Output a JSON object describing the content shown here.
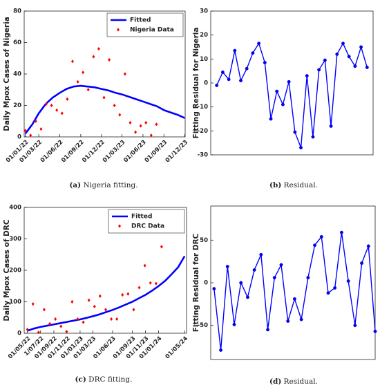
{
  "chart_data": [
    {
      "type": "line",
      "ylabel": "Daily Mpox Cases of Nigeria",
      "caption_label": "(a)",
      "caption": "Nigeria fitting.",
      "xlim": [
        "27/12/21",
        "03/12/23"
      ],
      "ylim": [
        0,
        80
      ],
      "xticks": [
        "01/01/22",
        "01/03/22",
        "01/06/22",
        "01/09/22",
        "01/12/22",
        "01/03/23",
        "01/06/23",
        "01/09/23",
        "01/12/23"
      ],
      "yticks": [
        0,
        20,
        40,
        60,
        80
      ],
      "legend": "upper right",
      "series": [
        {
          "name": "Fitted",
          "color": "#0000ff",
          "line": true,
          "marker": null,
          "x": [
            "01/01/22",
            "01/02/22",
            "01/03/22",
            "01/04/22",
            "01/05/22",
            "01/06/22",
            "01/07/22",
            "01/08/22",
            "01/09/22",
            "01/10/22",
            "01/11/22",
            "01/12/22",
            "01/01/23",
            "01/02/23",
            "01/03/23",
            "01/04/23",
            "01/05/23",
            "01/06/23",
            "01/07/23",
            "01/08/23",
            "01/09/23",
            "01/10/23",
            "01/11/23",
            "01/12/23"
          ],
          "values": [
            2,
            8,
            15,
            21,
            25,
            28,
            30.5,
            32,
            32.5,
            32,
            31.5,
            30.5,
            29.5,
            28,
            27,
            25.5,
            24,
            22.5,
            21,
            19.5,
            17,
            15.5,
            14,
            12
          ]
        },
        {
          "name": "Nigeria Data",
          "color": "#ff0000",
          "line": false,
          "marker": "diamond",
          "x": [
            "01/01/22",
            "24/01/22",
            "16/02/22",
            "11/03/22",
            "03/04/22",
            "26/04/22",
            "19/05/22",
            "11/06/22",
            "04/07/22",
            "27/07/22",
            "19/08/22",
            "11/09/22",
            "04/10/22",
            "27/10/22",
            "19/11/22",
            "12/12/22",
            "04/01/23",
            "27/01/23",
            "19/02/23",
            "14/03/23",
            "06/04/23",
            "29/04/23",
            "22/05/23",
            "14/06/23",
            "07/07/23",
            "30/07/23"
          ],
          "values": [
            4,
            1,
            10,
            5,
            21,
            20,
            17,
            15,
            24,
            48,
            35,
            41,
            30,
            51,
            56,
            25,
            49,
            20,
            14,
            40,
            9,
            3,
            7,
            9,
            1,
            8
          ]
        }
      ]
    },
    {
      "type": "line",
      "ylabel": "Fitting Residual for Nigeria",
      "caption_label": "(b)",
      "caption": "Residual.",
      "xlim": [
        0,
        27
      ],
      "ylim": [
        -30,
        30
      ],
      "yticks": [
        -30,
        -20,
        -10,
        0,
        10,
        20,
        30
      ],
      "series": [
        {
          "color": "#0000ff",
          "line": true,
          "marker": "circle",
          "x": [
            1,
            2,
            3,
            4,
            5,
            6,
            7,
            8,
            9,
            10,
            11,
            12,
            13,
            14,
            15,
            16,
            17,
            18,
            19,
            20,
            21,
            22,
            23,
            24,
            25,
            26
          ],
          "values": [
            -1,
            4.5,
            1.5,
            13.5,
            1,
            6,
            12.5,
            16.5,
            8.5,
            -15,
            -3.5,
            -9,
            0.5,
            -20.5,
            -27,
            3,
            -22.5,
            5.5,
            9.5,
            -18,
            12,
            16.5,
            11,
            7,
            15,
            6.5
          ]
        }
      ]
    },
    {
      "type": "line",
      "ylabel": "Daily Mpox Cases of DRC",
      "caption_label": "(c)",
      "caption": "DRC fitting.",
      "xlim": [
        "16/04/22",
        "10/05/24"
      ],
      "ylim": [
        0,
        400
      ],
      "xticks": [
        "01/05/22",
        {
          "value": "01/07/22",
          "label": "1/07/22"
        },
        "01/09/22",
        "01/11/22",
        "01/01/23",
        "01/03/23",
        "01/06/23",
        "01/09/23",
        "01/11/23",
        "01/01/24",
        "01/05/24"
      ],
      "yticks": [
        0,
        100,
        200,
        300,
        400
      ],
      "legend": "upper right",
      "series": [
        {
          "name": "Fitted",
          "color": "#0000ff",
          "line": true,
          "marker": null,
          "x": [
            "01/05/22",
            "01/06/22",
            "01/07/22",
            "01/08/22",
            "01/09/22",
            "01/10/22",
            "01/11/22",
            "01/12/22",
            "01/01/23",
            "01/02/23",
            "01/03/23",
            "01/04/23",
            "01/05/23",
            "01/06/23",
            "01/07/23",
            "01/08/23",
            "01/09/23",
            "01/10/23",
            "01/11/23",
            "01/12/23",
            "01/01/24",
            "01/02/24",
            "01/03/24",
            "01/04/24",
            "01/05/24"
          ],
          "values": [
            8,
            15,
            20,
            24,
            28,
            32,
            36,
            40,
            44,
            49,
            54,
            60,
            67,
            74,
            82,
            91,
            100,
            111,
            122,
            135,
            150,
            167,
            187,
            210,
            245
          ]
        },
        {
          "name": "DRC Data",
          "color": "#ff0000",
          "line": false,
          "marker": "diamond",
          "x": [
            "01/05/22",
            "27/05/22",
            "22/06/22",
            "18/07/22",
            "13/08/22",
            "08/09/22",
            "04/10/22",
            "30/10/22",
            "25/11/22",
            "21/12/22",
            "16/01/23",
            "11/02/23",
            "09/03/23",
            "04/04/23",
            "30/04/23",
            "26/05/23",
            "21/06/23",
            "17/07/23",
            "12/08/23",
            "07/09/23",
            "03/10/23",
            "29/10/23",
            "24/11/23",
            "20/12/23",
            "15/01/24"
          ],
          "values": [
            12,
            93,
            3,
            75,
            30,
            45,
            22,
            5,
            100,
            45,
            35,
            105,
            85,
            118,
            75,
            45,
            45,
            122,
            125,
            75,
            145,
            215,
            160,
            158,
            275
          ]
        }
      ]
    },
    {
      "type": "line",
      "ylabel": "Fitting Residual for DRC",
      "caption_label": "(d)",
      "caption": "Residual.",
      "xlim": [
        0.5,
        25
      ],
      "ylim": [
        -90,
        90
      ],
      "yticks": [
        -50,
        0,
        50
      ],
      "series": [
        {
          "color": "#0000ff",
          "line": true,
          "marker": "circle",
          "x": [
            1,
            2,
            3,
            4,
            5,
            6,
            7,
            8,
            9,
            10,
            11,
            12,
            13,
            14,
            15,
            16,
            17,
            18,
            19,
            20,
            21,
            22,
            23,
            24,
            25
          ],
          "values": [
            -7,
            -79,
            19,
            -49,
            0,
            -17,
            15,
            33,
            -55,
            6,
            21,
            -45,
            -19,
            -43,
            6,
            44,
            54,
            -12,
            -6,
            59,
            2,
            -50,
            23,
            43,
            -57
          ]
        }
      ]
    }
  ]
}
